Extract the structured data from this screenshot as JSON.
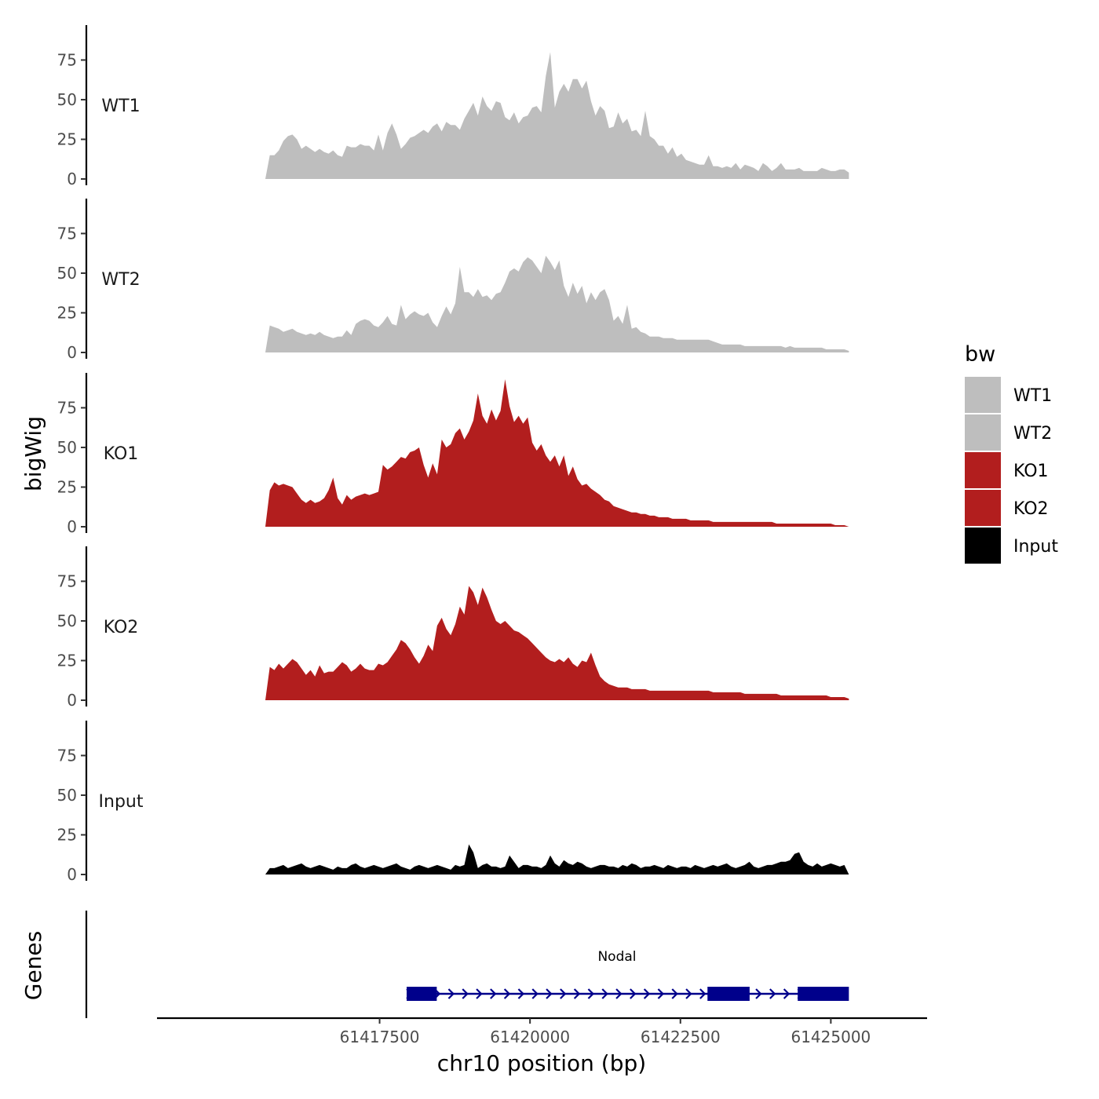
{
  "chart_data": {
    "type": "area",
    "chromosome": "chr10",
    "xlabel": "chr10 position (bp)",
    "ylabel": "bigWig",
    "gene_track_label": "Genes",
    "xlim": [
      61413800,
      61426600
    ],
    "x_ticks": [
      61417500,
      61420000,
      61422500,
      61425000
    ],
    "x_tick_labels": [
      "61417500",
      "61420000",
      "61422500",
      "61425000"
    ],
    "y_ticks": [
      0,
      25,
      50,
      75
    ],
    "y_tick_labels": [
      "0",
      "25",
      "50",
      "75"
    ],
    "ylim": [
      0,
      97
    ],
    "legend_title": "bw",
    "track_x_range": [
      61415600,
      61425300
    ],
    "tracks": [
      {
        "name": "WT1",
        "color": "#bebebe",
        "values": [
          0,
          15,
          15,
          18,
          24,
          27,
          28,
          25,
          19,
          21,
          19,
          17,
          19,
          17,
          16,
          18,
          15,
          14,
          21,
          20,
          20,
          22,
          21,
          21,
          18,
          28,
          18,
          29,
          35,
          28,
          19,
          22,
          26,
          27,
          29,
          31,
          29,
          33,
          35,
          30,
          36,
          34,
          34,
          31,
          38,
          43,
          48,
          40,
          52,
          46,
          43,
          49,
          48,
          39,
          37,
          42,
          35,
          39,
          40,
          45,
          46,
          42,
          65,
          80,
          45,
          55,
          60,
          55,
          63,
          63,
          57,
          62,
          49,
          40,
          46,
          43,
          32,
          33,
          42,
          35,
          38,
          30,
          31,
          27,
          43,
          27,
          25,
          21,
          21,
          16,
          20,
          14,
          16,
          12,
          11,
          10,
          9,
          9,
          15,
          8,
          8,
          7,
          8,
          7,
          10,
          6,
          9,
          8,
          7,
          5,
          10,
          8,
          5,
          7,
          10,
          6,
          6,
          6,
          7,
          5,
          5,
          5,
          5,
          7,
          6,
          5,
          5,
          6,
          6,
          4
        ]
      },
      {
        "name": "WT2",
        "color": "#bebebe",
        "values": [
          0,
          17,
          16,
          15,
          13,
          14,
          15,
          13,
          12,
          11,
          12,
          11,
          13,
          11,
          10,
          9,
          10,
          10,
          14,
          11,
          18,
          20,
          21,
          20,
          17,
          16,
          19,
          23,
          18,
          17,
          30,
          21,
          24,
          26,
          24,
          23,
          25,
          19,
          16,
          23,
          29,
          24,
          31,
          54,
          38,
          38,
          35,
          40,
          35,
          36,
          33,
          37,
          38,
          44,
          51,
          53,
          51,
          57,
          60,
          58,
          54,
          50,
          61,
          57,
          52,
          58,
          42,
          35,
          44,
          37,
          42,
          31,
          38,
          33,
          38,
          40,
          33,
          20,
          23,
          18,
          30,
          15,
          16,
          13,
          12,
          10,
          10,
          10,
          9,
          9,
          9,
          8,
          8,
          8,
          8,
          8,
          8,
          8,
          8,
          7,
          6,
          5,
          5,
          5,
          5,
          5,
          4,
          4,
          4,
          4,
          4,
          4,
          4,
          4,
          4,
          3,
          4,
          3,
          3,
          3,
          3,
          3,
          3,
          3,
          2,
          2,
          2,
          2,
          2,
          1
        ]
      },
      {
        "name": "KO1",
        "color": "#b21e1e",
        "values": [
          0,
          23,
          28,
          26,
          27,
          26,
          25,
          21,
          17,
          15,
          17,
          15,
          16,
          18,
          23,
          31,
          18,
          14,
          20,
          17,
          19,
          20,
          21,
          20,
          21,
          22,
          39,
          36,
          38,
          41,
          44,
          43,
          47,
          48,
          50,
          39,
          31,
          40,
          33,
          55,
          50,
          52,
          59,
          62,
          55,
          60,
          67,
          84,
          70,
          65,
          74,
          67,
          73,
          93,
          76,
          66,
          70,
          65,
          69,
          53,
          48,
          52,
          45,
          41,
          45,
          38,
          45,
          32,
          38,
          30,
          26,
          27,
          24,
          22,
          20,
          17,
          16,
          13,
          12,
          11,
          10,
          9,
          9,
          8,
          8,
          7,
          7,
          6,
          6,
          6,
          5,
          5,
          5,
          5,
          4,
          4,
          4,
          4,
          4,
          3,
          3,
          3,
          3,
          3,
          3,
          3,
          3,
          3,
          3,
          3,
          3,
          3,
          3,
          2,
          2,
          2,
          2,
          2,
          2,
          2,
          2,
          2,
          2,
          2,
          2,
          2,
          1,
          1,
          1,
          0
        ]
      },
      {
        "name": "KO2",
        "color": "#b21e1e",
        "values": [
          0,
          21,
          19,
          23,
          20,
          23,
          26,
          24,
          20,
          16,
          19,
          15,
          22,
          17,
          18,
          18,
          21,
          24,
          22,
          18,
          20,
          23,
          20,
          19,
          19,
          23,
          22,
          24,
          28,
          32,
          38,
          36,
          32,
          27,
          23,
          28,
          35,
          31,
          47,
          52,
          45,
          41,
          48,
          59,
          54,
          72,
          68,
          60,
          71,
          65,
          57,
          50,
          48,
          50,
          47,
          44,
          43,
          41,
          39,
          36,
          33,
          30,
          27,
          25,
          24,
          26,
          24,
          27,
          23,
          21,
          25,
          24,
          30,
          22,
          15,
          12,
          10,
          9,
          8,
          8,
          8,
          7,
          7,
          7,
          7,
          6,
          6,
          6,
          6,
          6,
          6,
          6,
          6,
          6,
          6,
          6,
          6,
          6,
          6,
          5,
          5,
          5,
          5,
          5,
          5,
          5,
          4,
          4,
          4,
          4,
          4,
          4,
          4,
          4,
          3,
          3,
          3,
          3,
          3,
          3,
          3,
          3,
          3,
          3,
          3,
          2,
          2,
          2,
          2,
          1
        ]
      },
      {
        "name": "Input",
        "color": "#000000",
        "values": [
          0,
          4,
          4,
          5,
          6,
          4,
          5,
          6,
          7,
          5,
          4,
          5,
          6,
          5,
          4,
          3,
          5,
          4,
          4,
          6,
          7,
          5,
          4,
          5,
          6,
          5,
          4,
          5,
          6,
          7,
          5,
          4,
          3,
          5,
          6,
          5,
          4,
          5,
          6,
          5,
          4,
          3,
          6,
          5,
          6,
          19,
          14,
          4,
          6,
          7,
          5,
          5,
          4,
          5,
          12,
          8,
          4,
          6,
          6,
          5,
          5,
          4,
          6,
          12,
          7,
          5,
          9,
          7,
          6,
          8,
          7,
          5,
          4,
          5,
          6,
          6,
          5,
          5,
          4,
          6,
          5,
          7,
          6,
          4,
          5,
          5,
          6,
          5,
          4,
          6,
          5,
          4,
          5,
          5,
          4,
          6,
          5,
          4,
          5,
          6,
          5,
          6,
          7,
          5,
          4,
          5,
          6,
          8,
          5,
          4,
          5,
          6,
          6,
          7,
          8,
          8,
          9,
          13,
          14,
          8,
          6,
          5,
          7,
          5,
          6,
          7,
          6,
          5,
          6,
          0
        ]
      }
    ],
    "gene": {
      "name": "Nodal",
      "strand": "+",
      "start": 61417950,
      "end": 61425100,
      "exons": [
        [
          61417950,
          61418450
        ],
        [
          61422950,
          61423650
        ],
        [
          61424450,
          61425300
        ]
      ],
      "color": "#00008b"
    }
  }
}
